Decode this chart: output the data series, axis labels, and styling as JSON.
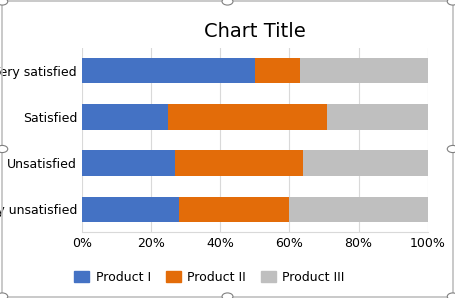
{
  "categories": [
    "Very satisfied",
    "Satisfied",
    "Unsatisfied",
    "Very unsatisfied"
  ],
  "series": [
    {
      "label": "Product I",
      "color": "#4472C4",
      "values": [
        0.5,
        0.25,
        0.27,
        0.28
      ]
    },
    {
      "label": "Product II",
      "color": "#E36C09",
      "values": [
        0.13,
        0.46,
        0.37,
        0.32
      ]
    },
    {
      "label": "Product III",
      "color": "#BFBFBF",
      "values": [
        0.37,
        0.29,
        0.36,
        0.4
      ]
    }
  ],
  "title": "Chart Title",
  "title_fontsize": 14,
  "xtick_labels": [
    "0%",
    "20%",
    "40%",
    "60%",
    "80%",
    "100%"
  ],
  "xtick_values": [
    0.0,
    0.2,
    0.4,
    0.6,
    0.8,
    1.0
  ],
  "bar_height": 0.55,
  "background_color": "#FFFFFF",
  "plot_background_color": "#FFFFFF",
  "grid_color": "#D9D9D9",
  "legend_fontsize": 9,
  "tick_fontsize": 9,
  "category_fontsize": 9,
  "border_color": "#C0C0C0",
  "handle_color": "#FFFFFF",
  "handle_edge_color": "#808080"
}
